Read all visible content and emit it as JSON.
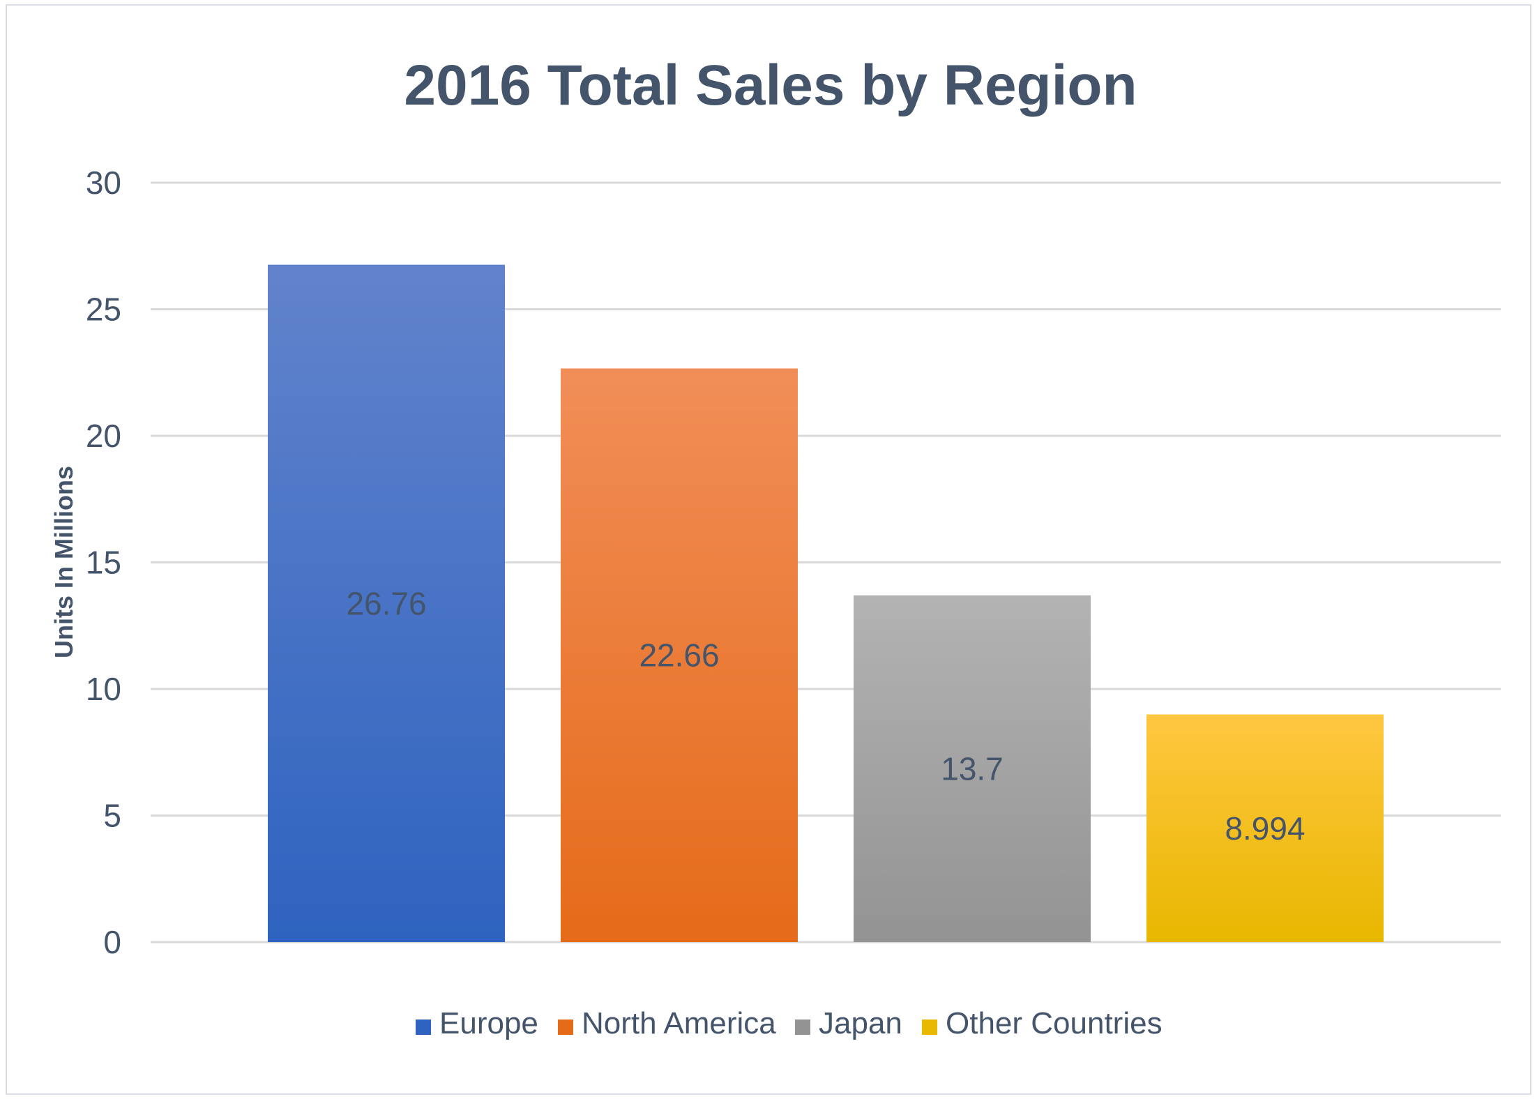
{
  "chart_data": {
    "type": "bar",
    "title": "2016 Total Sales by Region",
    "ylabel": "Units In Millions",
    "xlabel": "",
    "ylim": [
      0,
      30
    ],
    "yticks": [
      0,
      5,
      10,
      15,
      20,
      25,
      30
    ],
    "grid": true,
    "legend_position": "bottom",
    "series": [
      {
        "name": "Europe",
        "value": 26.76,
        "label": "26.76",
        "color_top": "#6283cc",
        "color_bottom": "#2e63bf"
      },
      {
        "name": "North America",
        "value": 22.66,
        "label": "22.66",
        "color_top": "#f18e58",
        "color_bottom": "#e56b19"
      },
      {
        "name": "Japan",
        "value": 13.7,
        "label": "13.7",
        "color_top": "#b3b3b3",
        "color_bottom": "#939393"
      },
      {
        "name": "Other Countries",
        "value": 8.994,
        "label": "8.994",
        "color_top": "#ffc740",
        "color_bottom": "#e8b700"
      }
    ],
    "colors": {
      "title": "#44546a",
      "axis_label": "#44546a",
      "tick_label": "#44546a",
      "data_label": "#44546a",
      "grid": "#d9d9d9"
    }
  }
}
